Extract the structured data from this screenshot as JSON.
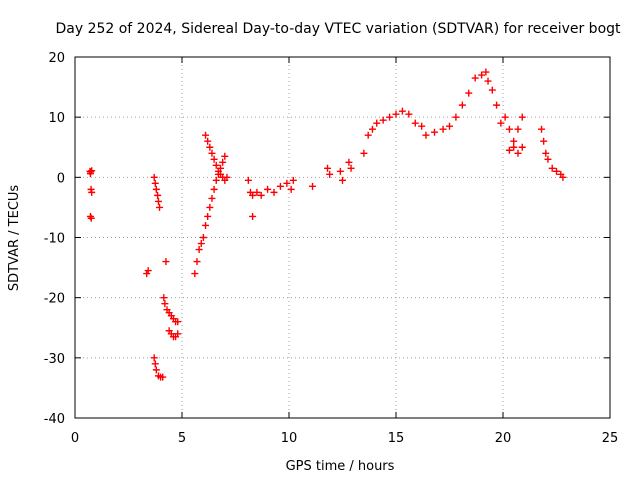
{
  "chart_data": {
    "type": "scatter",
    "title": "Day 252 of 2024, Sidereal Day-to-day VTEC variation (SDTVAR) for receiver bogt",
    "xlabel": "GPS time / hours",
    "ylabel": "SDTVAR / TECUs",
    "xlim": [
      0,
      25
    ],
    "ylim": [
      -40,
      20
    ],
    "xticks": [
      0,
      5,
      10,
      15,
      20,
      25
    ],
    "yticks": [
      -40,
      -30,
      -20,
      -10,
      0,
      10,
      20
    ],
    "grid": true,
    "marker": "+",
    "marker_color": "#ff0000",
    "series": [
      {
        "name": "SDTVAR",
        "x": [
          0.7,
          0.72,
          0.75,
          0.78,
          0.72,
          0.76,
          0.73,
          0.78,
          3.35,
          3.42,
          3.7,
          3.75,
          3.8,
          3.86,
          3.9,
          3.95,
          3.7,
          3.75,
          3.8,
          3.9,
          4.0,
          4.1,
          4.25,
          4.15,
          4.2,
          4.3,
          4.4,
          4.5,
          4.6,
          4.7,
          4.8,
          4.4,
          4.5,
          4.6,
          4.7,
          4.8,
          5.6,
          5.7,
          5.8,
          5.9,
          6.0,
          6.1,
          6.2,
          6.3,
          6.4,
          6.5,
          6.6,
          6.7,
          6.8,
          6.9,
          7.0,
          6.1,
          6.2,
          6.3,
          6.4,
          6.5,
          6.6,
          6.7,
          6.8,
          6.9,
          7.0,
          7.1,
          8.1,
          8.2,
          8.3,
          8.5,
          8.7,
          9.0,
          9.3,
          9.6,
          9.9,
          10.1,
          10.2,
          8.3,
          11.1,
          11.8,
          11.9,
          12.4,
          12.5,
          12.8,
          12.9,
          13.5,
          13.7,
          13.9,
          14.1,
          14.4,
          14.7,
          15.0,
          15.3,
          15.6,
          15.9,
          16.2,
          16.4,
          16.8,
          17.2,
          17.5,
          17.8,
          18.1,
          18.4,
          18.7,
          19.0,
          19.2,
          19.3,
          19.5,
          19.7,
          19.9,
          20.1,
          20.3,
          20.5,
          20.7,
          20.9,
          20.3,
          20.5,
          20.7,
          20.9,
          21.8,
          21.9,
          22.0,
          22.1,
          22.3,
          22.5,
          22.7,
          22.8
        ],
        "y": [
          1.0,
          0.6,
          -2.0,
          -2.5,
          -6.5,
          -6.8,
          0.9,
          1.1,
          -16.0,
          -15.5,
          0.0,
          -1.0,
          -2.0,
          -3.0,
          -4.0,
          -5.0,
          -30.0,
          -31.0,
          -32.0,
          -33.0,
          -33.2,
          -33.2,
          -14.0,
          -20.0,
          -21.0,
          -22.0,
          -22.5,
          -23.0,
          -23.5,
          -24.0,
          -24.0,
          -25.5,
          -26.0,
          -26.5,
          -26.5,
          -26.0,
          -16.0,
          -14.0,
          -12.0,
          -11.0,
          -10.0,
          -8.0,
          -6.5,
          -5.0,
          -3.5,
          -2.0,
          -0.5,
          0.5,
          1.5,
          2.5,
          3.5,
          7.0,
          6.0,
          5.0,
          4.0,
          3.0,
          2.0,
          1.0,
          0.5,
          0.0,
          -0.5,
          0.0,
          -0.5,
          -2.5,
          -3.0,
          -2.5,
          -3.0,
          -2.0,
          -2.5,
          -1.5,
          -1.0,
          -2.0,
          -0.5,
          -6.5,
          -1.5,
          1.5,
          0.5,
          1.0,
          -0.5,
          2.5,
          1.5,
          4.0,
          7.0,
          8.0,
          9.0,
          9.5,
          10.0,
          10.5,
          11.0,
          10.5,
          9.0,
          8.5,
          7.0,
          7.5,
          8.0,
          8.5,
          10.0,
          12.0,
          14.0,
          16.5,
          17.0,
          17.5,
          16.0,
          14.5,
          12.0,
          9.0,
          10.0,
          8.0,
          6.0,
          8.0,
          10.0,
          4.5,
          5.0,
          4.0,
          5.0,
          8.0,
          6.0,
          4.0,
          3.0,
          1.5,
          1.0,
          0.5,
          0.0
        ]
      }
    ]
  }
}
